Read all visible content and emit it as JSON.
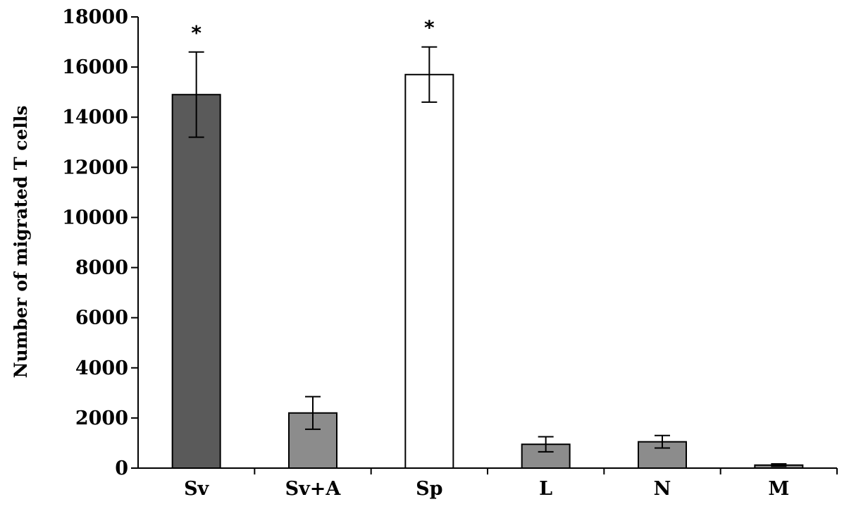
{
  "chart_data": {
    "type": "bar",
    "title": "",
    "xlabel": "",
    "ylabel": "Number of migrated T cells",
    "ylim": [
      0,
      18000
    ],
    "yticks": [
      "0",
      "2000",
      "4000",
      "6000",
      "8000",
      "10000",
      "12000",
      "14000",
      "16000",
      "18000"
    ],
    "categories": [
      "Sv",
      "Sv+A",
      "Sp",
      "L",
      "N",
      "M"
    ],
    "values": [
      14900,
      2200,
      15700,
      950,
      1050,
      120
    ],
    "errors": [
      1700,
      650,
      1100,
      300,
      250,
      50
    ],
    "significance": [
      "*",
      "",
      "*",
      "",
      "",
      ""
    ],
    "bar_colors": [
      "#5a5a5a",
      "#8c8c8c",
      "#ffffff",
      "#8c8c8c",
      "#8c8c8c",
      "#8c8c8c"
    ],
    "grid": false,
    "legend": "none"
  }
}
